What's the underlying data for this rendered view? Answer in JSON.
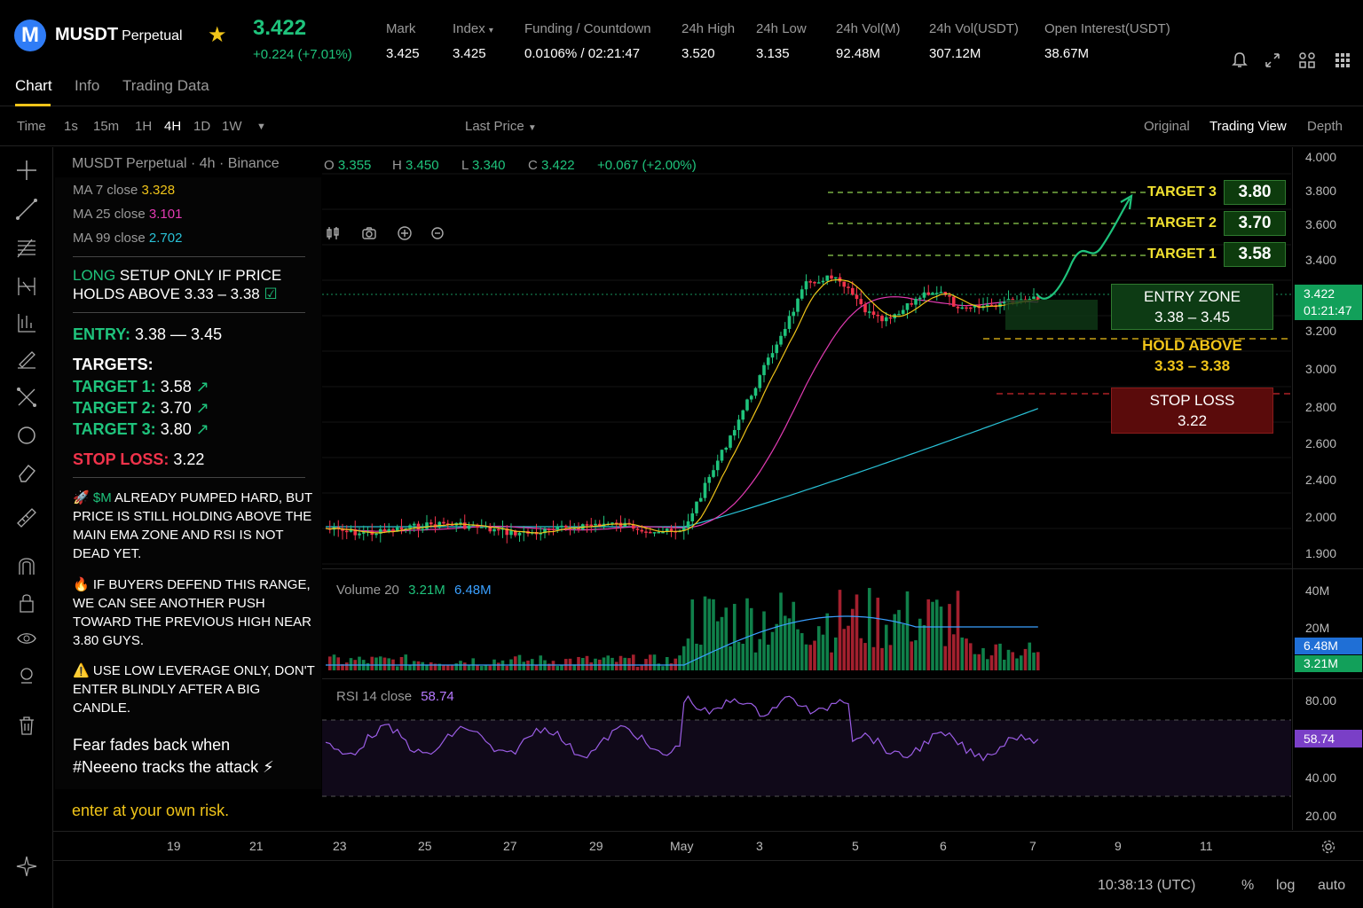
{
  "header": {
    "logo_letter": "M",
    "symbol": "MUSDT",
    "contract": "Perpetual",
    "last_price": "3.422",
    "change": "+0.224 (+7.01%)",
    "stats": [
      {
        "label": "Mark",
        "value": "3.425"
      },
      {
        "label": "Index",
        "value": "3.425"
      },
      {
        "label": "Funding / Countdown",
        "value_green": "0.0106%",
        "value": "/ 02:21:47"
      },
      {
        "label": "24h High",
        "value": "3.520"
      },
      {
        "label": "24h Low",
        "value": "3.135"
      },
      {
        "label": "24h Vol(M)",
        "value": "92.48M"
      },
      {
        "label": "24h Vol(USDT)",
        "value": "307.12M"
      },
      {
        "label": "Open Interest(USDT)",
        "value": "38.67M"
      }
    ],
    "icons": [
      "bell-icon",
      "expand-icon",
      "layout-icon",
      "grid-icon"
    ]
  },
  "tabs": [
    "Chart",
    "Info",
    "Trading Data"
  ],
  "toolbar": {
    "time_label": "Time",
    "intervals": [
      "1s",
      "15m",
      "1H",
      "4H",
      "1D",
      "1W"
    ],
    "active_interval": "4H",
    "price_type": "Last Price",
    "views": [
      "Original",
      "Trading View",
      "Depth"
    ],
    "active_view": "Trading View"
  },
  "legend": {
    "title": "MUSDT Perpetual · 4h · Binance",
    "o_label": "O",
    "o": "3.355",
    "h_label": "H",
    "h": "3.450",
    "l_label": "L",
    "l": "3.340",
    "c_label": "C",
    "c": "3.422",
    "chg": "+0.067 (+2.00%)",
    "ma7_label": "MA 7 close",
    "ma7": "3.328",
    "ma25_label": "MA 25 close",
    "ma25": "3.101",
    "ma99_label": "MA 99 close",
    "ma99": "2.702"
  },
  "panel": {
    "setup_long": "LONG",
    "setup_rest1": "SETUP ONLY IF PRICE",
    "setup_line2": "HOLDS ABOVE 3.33 – 3.38",
    "entry_label": "ENTRY:",
    "entry_value": "3.38 — 3.45",
    "targets_label": "TARGETS:",
    "targets": [
      {
        "label": "TARGET 1:",
        "value": "3.58"
      },
      {
        "label": "TARGET 2:",
        "value": "3.70"
      },
      {
        "label": "TARGET 3:",
        "value": "3.80"
      }
    ],
    "stop_label": "STOP LOSS:",
    "stop_value": "3.22",
    "note1_ticker": "$M",
    "note1": "ALREADY PUMPED HARD, BUT PRICE IS STILL HOLDING ABOVE THE MAIN EMA ZONE AND RSI IS NOT DEAD YET.",
    "note2": "IF BUYERS DEFEND THIS RANGE, WE CAN SEE ANOTHER PUSH TOWARD THE PREVIOUS HIGH NEAR 3.80 GUYS.",
    "note3": "USE LOW LEVERAGE ONLY, DON'T ENTER BLINDLY AFTER A BIG CANDLE.",
    "slogan1": "Fear fades back when",
    "slogan2": "#Neeeno tracks the attack",
    "risk": "enter at your own risk."
  },
  "annotations": {
    "target3_label": "TARGET 3",
    "target3": "3.80",
    "target2_label": "TARGET 2",
    "target2": "3.70",
    "target1_label": "TARGET 1",
    "target1": "3.58",
    "entry_label": "ENTRY ZONE",
    "entry_range": "3.38 – 3.45",
    "hold_label": "HOLD ABOVE",
    "hold_range": "3.33 – 3.38",
    "stop_label": "STOP LOSS",
    "stop_value": "3.22"
  },
  "price_axis": [
    "4.000",
    "3.800",
    "3.600",
    "3.400",
    "3.200",
    "3.000",
    "2.800",
    "2.600",
    "2.400",
    "2.000",
    "1.900"
  ],
  "price_marker": {
    "price": "3.422",
    "countdown": "01:21:47"
  },
  "volume": {
    "label": "Volume 20",
    "v1": "3.21M",
    "v2": "6.48M",
    "axis": [
      "40M",
      "20M"
    ],
    "marker_ma": "6.48M",
    "marker_vol": "3.21M"
  },
  "rsi": {
    "label": "RSI 14 close",
    "value": "58.74",
    "axis": [
      "80.00",
      "40.00",
      "20.00"
    ],
    "marker": "58.74"
  },
  "dates": [
    "19",
    "21",
    "23",
    "25",
    "27",
    "29",
    "May",
    "3",
    "5",
    "6",
    "7",
    "9",
    "11"
  ],
  "footer": {
    "time": "10:38:13 (UTC)",
    "pct": "%",
    "log": "log",
    "auto": "auto"
  },
  "colors": {
    "up": "#1fc37c",
    "down": "#f1334b",
    "accent": "#f0c419",
    "ma7": "#f0c419",
    "ma25": "#e23bb3",
    "ma99": "#29c1d6",
    "rsi": "#9b5de5"
  }
}
